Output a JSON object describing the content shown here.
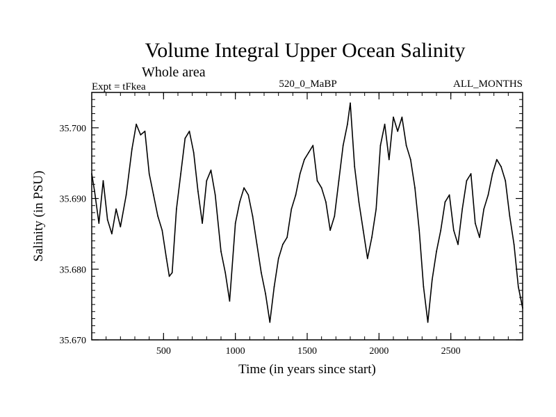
{
  "header": {
    "title": "Volume Integral Upper Ocean Salinity",
    "subtitle": "Whole area",
    "expt": "Expt = tFkea",
    "run": "520_0_MaBP",
    "months": "ALL_MONTHS"
  },
  "chart_data": {
    "type": "line",
    "title": "Volume Integral Upper Ocean Salinity",
    "xlabel": "Time (in years since start)",
    "ylabel": "Salinity (in PSU)",
    "xlim": [
      0,
      3000
    ],
    "ylim": [
      35.67,
      35.705
    ],
    "grid": false,
    "legend": "none",
    "x_ticks": [
      500,
      1000,
      1500,
      2000,
      2500
    ],
    "x_tick_labels": [
      "500",
      "1000",
      "1500",
      "2000",
      "2500"
    ],
    "y_ticks": [
      35.67,
      35.68,
      35.69,
      35.7
    ],
    "y_tick_labels": [
      "35.670",
      "35.680",
      "35.690",
      "35.700"
    ],
    "series": [
      {
        "color": "#000000",
        "x": [
          0,
          20,
          50,
          80,
          110,
          140,
          170,
          200,
          240,
          280,
          310,
          340,
          370,
          400,
          430,
          460,
          490,
          520,
          540,
          560,
          590,
          620,
          650,
          680,
          710,
          740,
          770,
          800,
          830,
          860,
          900,
          930,
          960,
          1000,
          1030,
          1060,
          1090,
          1120,
          1150,
          1180,
          1210,
          1240,
          1270,
          1300,
          1330,
          1360,
          1390,
          1420,
          1450,
          1480,
          1510,
          1540,
          1570,
          1600,
          1630,
          1660,
          1690,
          1720,
          1750,
          1780,
          1800,
          1830,
          1860,
          1890,
          1920,
          1950,
          1980,
          2010,
          2040,
          2070,
          2100,
          2130,
          2160,
          2190,
          2220,
          2250,
          2280,
          2310,
          2340,
          2370,
          2400,
          2430,
          2460,
          2490,
          2520,
          2550,
          2580,
          2610,
          2640,
          2670,
          2700,
          2730,
          2760,
          2790,
          2820,
          2850,
          2880,
          2910,
          2940,
          2970,
          3000
        ],
        "y": [
          35.6935,
          35.691,
          35.6865,
          35.6925,
          35.687,
          35.685,
          35.6885,
          35.686,
          35.6905,
          35.697,
          35.7005,
          35.699,
          35.6995,
          35.6935,
          35.6905,
          35.6875,
          35.6855,
          35.6815,
          35.679,
          35.6795,
          35.6885,
          35.6935,
          35.6985,
          35.6995,
          35.6965,
          35.691,
          35.6865,
          35.6925,
          35.694,
          35.6905,
          35.6825,
          35.6795,
          35.6755,
          35.6865,
          35.6895,
          35.6915,
          35.6905,
          35.6875,
          35.6835,
          35.6795,
          35.6765,
          35.6725,
          35.6775,
          35.6815,
          35.6835,
          35.6845,
          35.6885,
          35.6905,
          35.6935,
          35.6955,
          35.6965,
          35.6975,
          35.6925,
          35.6915,
          35.6895,
          35.6855,
          35.6875,
          35.6925,
          35.6975,
          35.7005,
          35.7035,
          35.6945,
          35.6895,
          35.6855,
          35.6815,
          35.6845,
          35.6885,
          35.6975,
          35.7005,
          35.6955,
          35.7015,
          35.6995,
          35.7015,
          35.6975,
          35.6955,
          35.6915,
          35.6855,
          35.6775,
          35.6725,
          35.6785,
          35.6825,
          35.6855,
          35.6895,
          35.6905,
          35.6855,
          35.6835,
          35.6885,
          35.6925,
          35.6935,
          35.6865,
          35.6845,
          35.6885,
          35.6905,
          35.6935,
          35.6955,
          35.6945,
          35.6925,
          35.6875,
          35.6835,
          35.6775,
          35.6745
        ]
      }
    ]
  }
}
